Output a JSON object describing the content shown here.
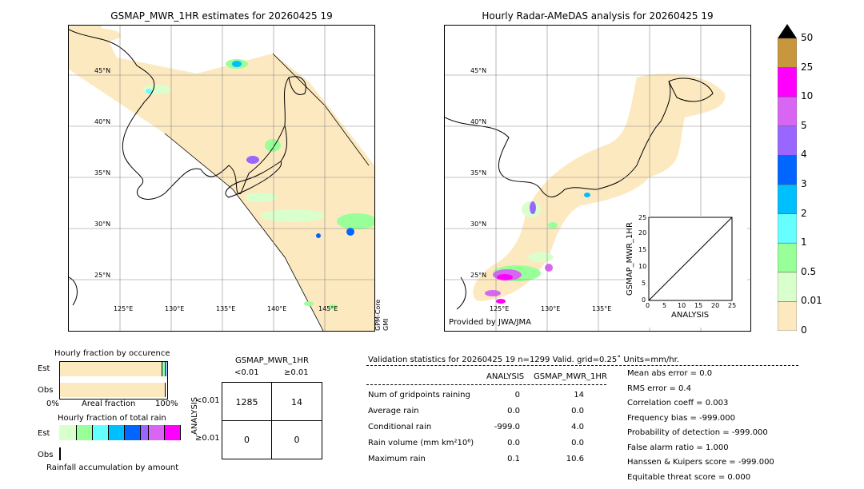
{
  "left_map": {
    "title": "GSMAP_MWR_1HR estimates for 20260425 19",
    "lat_labels": [
      "45°N",
      "40°N",
      "35°N",
      "30°N",
      "25°N"
    ],
    "lon_labels": [
      "125°E",
      "130°E",
      "135°E",
      "140°E",
      "145°E"
    ],
    "side_label_1": "GPM-Core",
    "side_label_2": "GMI"
  },
  "right_map": {
    "title": "Hourly Radar-AMeDAS analysis for 20260425 19",
    "lat_labels": [
      "45°N",
      "40°N",
      "35°N",
      "30°N",
      "25°N"
    ],
    "lon_labels": [
      "125°E",
      "130°E",
      "135°E"
    ],
    "credit": "Provided by JWA/JMA"
  },
  "inset": {
    "xlabel": "ANALYSIS",
    "ylabel": "GSMAP_MWR_1HR",
    "ticks": [
      "0",
      "5",
      "10",
      "15",
      "20",
      "25"
    ]
  },
  "colorbar": {
    "labels": [
      "50",
      "25",
      "10",
      "5",
      "4",
      "3",
      "2",
      "1",
      "0.5",
      "0.01",
      "0"
    ],
    "colors": [
      "#c8963c",
      "#ff00ff",
      "#d966f2",
      "#9966ff",
      "#0066ff",
      "#00bfff",
      "#66ffff",
      "#99ff99",
      "#d9ffcc",
      "#fde9c0"
    ]
  },
  "occurrence": {
    "title": "Hourly fraction by occurence",
    "est": "Est",
    "obs": "Obs",
    "x0": "0%",
    "xmid": "Areal fraction",
    "x1": "100%"
  },
  "total_rain": {
    "title": "Hourly fraction of total rain",
    "est": "Est",
    "obs": "Obs",
    "footer": "Rainfall accumulation by amount"
  },
  "contingency": {
    "title": "GSMAP_MWR_1HR",
    "col1": "<0.01",
    "col2": "≥0.01",
    "row_axis": "ANALYSIS",
    "row1": "<0.01",
    "row2": "≥0.01",
    "values": [
      "1285",
      "14",
      "0",
      "0"
    ]
  },
  "validation": {
    "header": "Validation statistics for 20260425 19  n=1299 Valid. grid=0.25˚ Units=mm/hr.",
    "col_analysis": "ANALYSIS",
    "col_gsmap": "GSMAP_MWR_1HR",
    "rows": [
      {
        "label": "Num of gridpoints raining",
        "a": "0",
        "g": "14"
      },
      {
        "label": "Average rain",
        "a": "0.0",
        "g": "0.0"
      },
      {
        "label": "Conditional rain",
        "a": "-999.0",
        "g": "4.0"
      },
      {
        "label": "Rain volume (mm km²10⁶)",
        "a": "0.0",
        "g": "0.0"
      },
      {
        "label": "Maximum rain",
        "a": "0.1",
        "g": "10.6"
      }
    ],
    "scores": [
      "Mean abs error =    0.0",
      "RMS error =    0.4",
      "Correlation coeff =  0.003",
      "Frequency bias = -999.000",
      "Probability of detection = -999.000",
      "False alarm ratio =  1.000",
      "Hanssen & Kuipers score = -999.000",
      "Equitable threat score =  0.000"
    ]
  },
  "chart_data": [
    {
      "type": "heatmap",
      "title": "GSMAP_MWR_1HR estimates for 20260425 19",
      "units": "mm/hr",
      "lat_range": [
        21,
        50
      ],
      "lon_range": [
        120,
        150
      ]
    },
    {
      "type": "heatmap",
      "title": "Hourly Radar-AMeDAS analysis for 20260425 19",
      "units": "mm/hr",
      "lat_range": [
        21,
        50
      ],
      "lon_range": [
        120,
        150
      ]
    },
    {
      "type": "scatter",
      "xlabel": "ANALYSIS",
      "ylabel": "GSMAP_MWR_1HR",
      "xlim": [
        0,
        25
      ],
      "ylim": [
        0,
        25
      ]
    },
    {
      "type": "table",
      "title": "GSMAP_MWR_1HR",
      "columns": [
        "<0.01",
        "≥0.01"
      ],
      "rows": [
        "<0.01",
        "≥0.01"
      ],
      "values": [
        [
          1285,
          14
        ],
        [
          0,
          0
        ]
      ]
    }
  ]
}
